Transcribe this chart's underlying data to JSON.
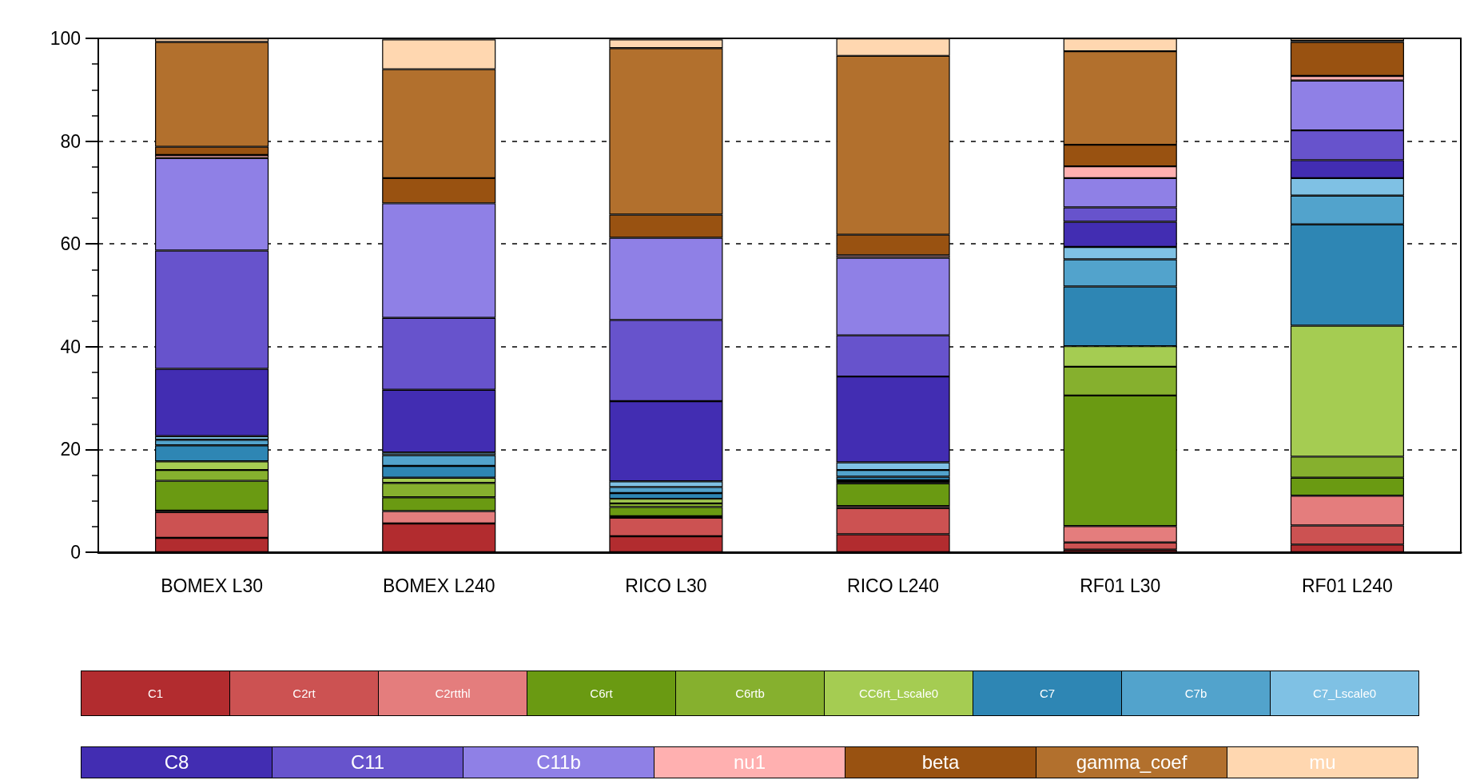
{
  "chart_data": {
    "type": "bar",
    "stacked": true,
    "categories": [
      "BOMEX L30",
      "BOMEX L240",
      "RICO L30",
      "RICO L240",
      "RF01 L30",
      "RF01 L240"
    ],
    "ylim": [
      0,
      100
    ],
    "yticks": [
      0,
      20,
      40,
      60,
      80,
      100
    ],
    "grid": "y",
    "legend": "bottom",
    "series": [
      {
        "name": "C1",
        "color": "#b22c2f",
        "values": [
          2.8,
          5.6,
          3.1,
          3.5,
          0.5,
          1.5
        ]
      },
      {
        "name": "C2rt",
        "color": "#cc5252",
        "values": [
          5.0,
          null,
          3.6,
          5.1,
          1.4,
          3.7
        ]
      },
      {
        "name": "C2rtthl",
        "color": "#e47d7d",
        "values": [
          0.3,
          2.4,
          0.3,
          0.4,
          3.2,
          5.8
        ]
      },
      {
        "name": "C6rt",
        "color": "#6a9a12",
        "values": [
          5.8,
          2.7,
          1.8,
          4.4,
          25.4,
          3.5
        ]
      },
      {
        "name": "C6rtb",
        "color": "#86b02e",
        "values": [
          2.1,
          2.8,
          0.7,
          0.3,
          5.6,
          4.1
        ]
      },
      {
        "name": "CC6rt_Lscale0",
        "color": "#a5cc52",
        "values": [
          1.7,
          1.0,
          0.9,
          0.3,
          4.0,
          25.5
        ]
      },
      {
        "name": "C7",
        "color": "#2e86b4",
        "values": [
          3.1,
          2.3,
          1.1,
          0.7,
          11.6,
          19.7
        ]
      },
      {
        "name": "C7b",
        "color": "#52a3cc",
        "values": [
          1.1,
          2.1,
          1.2,
          1.3,
          5.3,
          5.6
        ]
      },
      {
        "name": "C7_Lscale0",
        "color": "#7fc1e4",
        "values": [
          0.7,
          0.5,
          1.1,
          1.5,
          2.4,
          3.4
        ]
      },
      {
        "name": "C8",
        "color": "#422db2",
        "values": [
          13.1,
          12.2,
          15.6,
          16.7,
          4.9,
          3.5
        ]
      },
      {
        "name": "C11",
        "color": "#6753cc",
        "values": [
          23.0,
          14.0,
          15.8,
          8.0,
          2.8,
          5.8
        ]
      },
      {
        "name": "C11b",
        "color": "#8f80e6",
        "values": [
          18.0,
          22.3,
          16.0,
          15.1,
          5.7,
          9.7
        ]
      },
      {
        "name": "nu1",
        "color": "#ffb0b0",
        "values": [
          0.6,
          null,
          null,
          0.5,
          2.3,
          0.9
        ]
      },
      {
        "name": "beta",
        "color": "#995211",
        "values": [
          1.6,
          4.9,
          4.5,
          4.0,
          4.2,
          6.6
        ]
      },
      {
        "name": "gamma_coef",
        "color": "#b2702d",
        "values": [
          20.4,
          21.2,
          32.4,
          34.8,
          18.2,
          0.2
        ]
      },
      {
        "name": "mu",
        "color": "#ffd7b0",
        "values": [
          0.7,
          5.8,
          1.7,
          3.4,
          2.5,
          0.5
        ]
      }
    ]
  }
}
